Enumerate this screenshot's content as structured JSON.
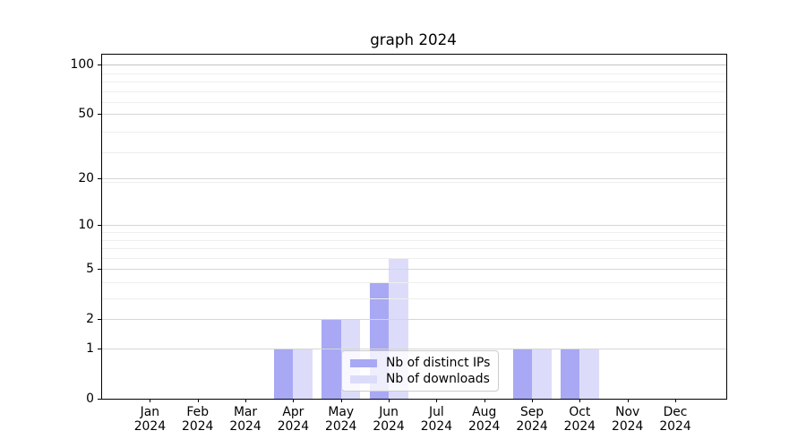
{
  "chart_data": {
    "type": "bar",
    "title": "graph 2024",
    "categories": [
      "Jan",
      "Feb",
      "Mar",
      "Apr",
      "May",
      "Jun",
      "Jul",
      "Aug",
      "Sep",
      "Oct",
      "Nov",
      "Dec"
    ],
    "x_tick_second_line": "2024",
    "series": [
      {
        "name": "Nb of distinct IPs",
        "color": "#a8a8f4",
        "values": [
          0,
          0,
          0,
          1,
          2,
          4,
          0,
          0,
          1,
          1,
          0,
          0
        ]
      },
      {
        "name": "Nb of downloads",
        "color": "#dcdcfa",
        "values": [
          0,
          0,
          0,
          1,
          2,
          6,
          0,
          0,
          1,
          1,
          0,
          0
        ]
      }
    ],
    "xlabel": "",
    "ylabel": "",
    "yscale": "log10(1+x)",
    "ylim": [
      0,
      115
    ],
    "y_major_ticks": [
      0,
      1,
      2,
      5,
      10,
      20,
      50,
      100
    ],
    "y_minor_gridlines": [
      3,
      4,
      6,
      7,
      8,
      9,
      19,
      29,
      39,
      59,
      69,
      79,
      89
    ],
    "grid": true,
    "legend_position": "lower center",
    "colors": {
      "axis": "#000000",
      "grid_major": "#d6d6d6",
      "grid_minor": "#eeeeee",
      "grid_top_line": "#c3c3c3",
      "background": "#ffffff",
      "legend_border": "#cccccc"
    }
  }
}
